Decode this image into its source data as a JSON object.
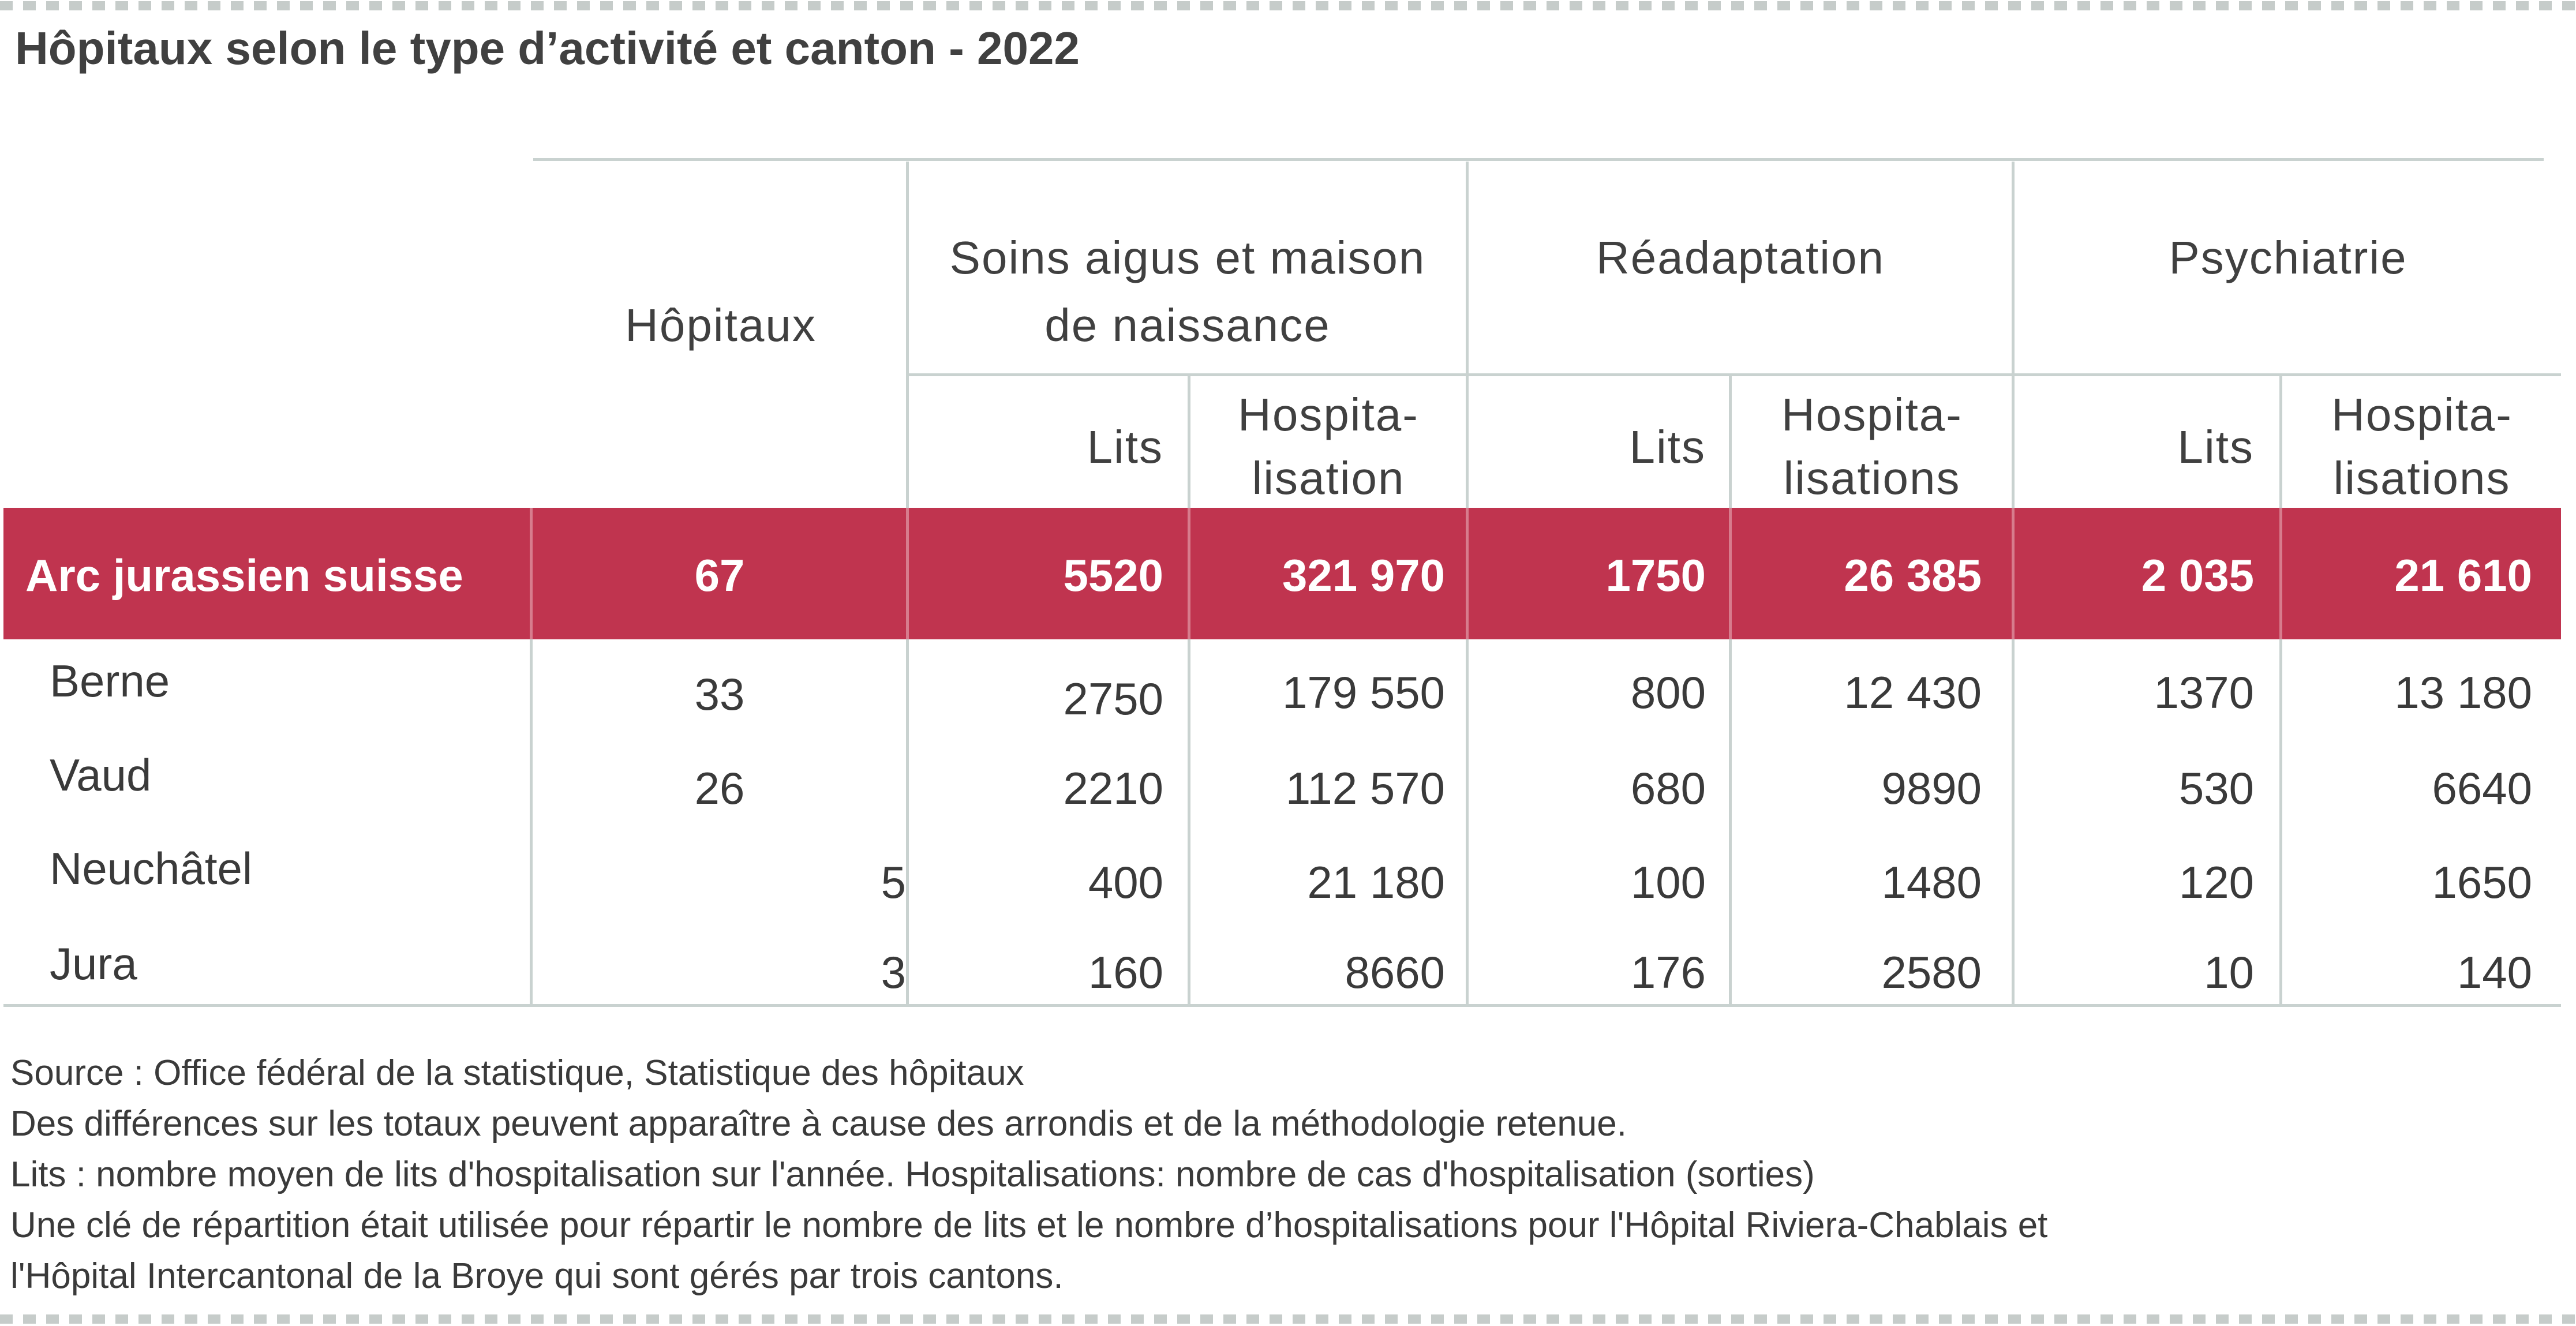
{
  "title": "Hôpitaux selon le type d’activité et canton - 2022",
  "headers": {
    "hospitals": "Hôpitaux",
    "groups": [
      {
        "line1": "Soins aigus et maison",
        "line2": "de naissance"
      },
      {
        "line1": "Réadaptation",
        "line2": ""
      },
      {
        "line1": "Psychiatrie",
        "line2": ""
      }
    ],
    "sub": [
      {
        "line1": "Lits",
        "line2": ""
      },
      {
        "line1": "Hospita-",
        "line2": "lisation"
      },
      {
        "line1": "Lits",
        "line2": ""
      },
      {
        "line1": "Hospita-",
        "line2": "lisations"
      },
      {
        "line1": "Lits",
        "line2": ""
      },
      {
        "line1": "Hospita-",
        "line2": "lisations"
      }
    ]
  },
  "total_row": {
    "label": "Arc jurassien suisse",
    "values": [
      "67",
      "5520",
      "321 970",
      "1750",
      "26 385",
      "2 035",
      "21 610"
    ]
  },
  "rows": [
    {
      "label": "Berne",
      "values": [
        "33",
        "2750",
        "179 550",
        "800",
        "12 430",
        "1370",
        "13 180"
      ]
    },
    {
      "label": "Vaud",
      "values": [
        "26",
        "2210",
        "112 570",
        "680",
        "9890",
        "530",
        "6640"
      ]
    },
    {
      "label": "Neuchâtel",
      "values": [
        "5",
        "400",
        "21 180",
        "100",
        "1480",
        "120",
        "1650"
      ]
    },
    {
      "label": "Jura",
      "values": [
        "3",
        "160",
        "8660",
        "176",
        "2580",
        "10",
        "140"
      ]
    }
  ],
  "notes": [
    "Source : Office fédéral de la statistique, Statistique des hôpitaux",
    "Des différences sur les totaux peuvent apparaître à cause des arrondis et de la méthodologie retenue.",
    "Lits : nombre moyen de lits d'hospitalisation sur l'année. Hospitalisations: nombre de cas d'hospitalisation (sorties)",
    "Une clé de répartition était utilisée pour répartir le nombre de lits et le nombre d’hospitalisations pour l'Hôpital Riviera-Chablais et",
    "l'Hôpital Intercantonal de la Broye qui sont gérés par trois cantons."
  ]
}
